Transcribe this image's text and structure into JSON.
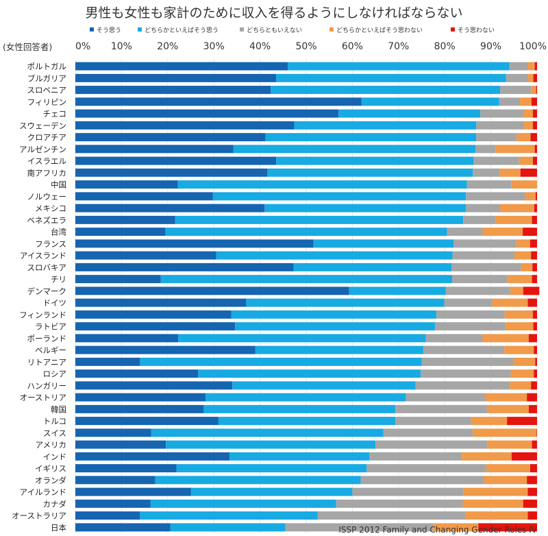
{
  "chart_data": {
    "type": "bar",
    "orientation": "horizontal",
    "stacked": true,
    "title": "男性も女性も家計のために収入を得るようにしなければならない",
    "ylabel": "(女性回答者)",
    "xlim": [
      0,
      100
    ],
    "x_ticks": [
      "0%",
      "10%",
      "20%",
      "30%",
      "40%",
      "50%",
      "60%",
      "70%",
      "80%",
      "90%",
      "100%"
    ],
    "grid": true,
    "legend_position": "top",
    "source": "ISSP 2012 Family and Changing Gender Roles IV",
    "categories": [
      "ポルトガル",
      "ブルガリア",
      "スロベニア",
      "フィリピン",
      "チェコ",
      "スウェーデン",
      "クロアチア",
      "アルゼンチン",
      "イスラエル",
      "南アフリカ",
      "中国",
      "ノルウェー",
      "メキシコ",
      "ベネズエラ",
      "台湾",
      "フランス",
      "アイスランド",
      "スロバキア",
      "チリ",
      "デンマーク",
      "ドイツ",
      "フィンランド",
      "ラトビア",
      "ポーランド",
      "ベルギー",
      "リトアニア",
      "ロシア",
      "ハンガリー",
      "オーストリア",
      "韓国",
      "トルコ",
      "スイス",
      "アメリカ",
      "インド",
      "イギリス",
      "オランダ",
      "アイルランド",
      "カナダ",
      "オーストラリア",
      "日本"
    ],
    "series": [
      {
        "name": "そう思う",
        "color": "#1565b0",
        "values": [
          46,
          43.5,
          42.3,
          62,
          57,
          47.4,
          41.2,
          34.2,
          43.5,
          41.6,
          22.2,
          29.8,
          41,
          21.6,
          19.5,
          51.6,
          30.5,
          47.3,
          18.5,
          59.3,
          37,
          33.8,
          34.6,
          22.3,
          39,
          14,
          26.6,
          34,
          28.2,
          27.8,
          31,
          16.4,
          19.6,
          33.4,
          21.9,
          17.3,
          25,
          16.3,
          14,
          20.6
        ]
      },
      {
        "name": "どちらかといえばそう思う",
        "color": "#18aae2",
        "values": [
          48,
          49.8,
          49.7,
          29.8,
          30.7,
          39.4,
          45.6,
          52.5,
          42.8,
          44.5,
          62.6,
          54.8,
          43.6,
          62.4,
          61,
          30.3,
          51.2,
          34.2,
          63.1,
          20.9,
          42.9,
          44.4,
          43.3,
          53.6,
          36.4,
          61,
          48.2,
          39.7,
          43.4,
          41.5,
          38.3,
          50.3,
          45.4,
          30.3,
          41.2,
          44.5,
          35,
          40.2,
          38.5,
          24.9
        ]
      },
      {
        "name": "どちらともいえない",
        "color": "#a6a6a6",
        "values": [
          4,
          4.7,
          6.7,
          4.5,
          9.4,
          10.4,
          8.8,
          4.3,
          9.8,
          5.8,
          9.6,
          12.8,
          7.4,
          7,
          7.7,
          13.6,
          13.4,
          15,
          12,
          14,
          10.4,
          14.8,
          15.3,
          12.3,
          17.5,
          20,
          19.5,
          20.4,
          17.2,
          20,
          16.4,
          19.4,
          24.3,
          20,
          25.9,
          26.7,
          24,
          27.4,
          32,
          32
        ]
      },
      {
        "name": "どちらかといえばそう思わない",
        "color": "#f19a4a",
        "values": [
          1.5,
          1.2,
          1.1,
          2.5,
          2,
          1.9,
          3,
          8.5,
          3,
          4.5,
          5.6,
          2.3,
          7.4,
          7.9,
          8.7,
          3,
          3.6,
          2.5,
          5.3,
          2.8,
          7.7,
          6.1,
          6,
          10,
          6.4,
          4.6,
          5,
          4.6,
          9,
          8.9,
          7.8,
          13.8,
          9.6,
          10.8,
          9.5,
          9.3,
          14,
          13.1,
          13.5,
          9.8
        ]
      },
      {
        "name": "そう思わない",
        "color": "#e5140e",
        "values": [
          0.5,
          0.8,
          0.2,
          1.2,
          0.9,
          0.9,
          1.4,
          0.5,
          0.9,
          3.6,
          0,
          0.3,
          0.6,
          1.1,
          3.1,
          1.5,
          1.3,
          1,
          1.1,
          3.5,
          2,
          0.9,
          0.8,
          1.8,
          0.7,
          0.4,
          0.7,
          1.3,
          2.2,
          1.8,
          6.5,
          0.1,
          1.1,
          5.5,
          1.5,
          2.2,
          2,
          3,
          2,
          12.7
        ]
      }
    ]
  }
}
